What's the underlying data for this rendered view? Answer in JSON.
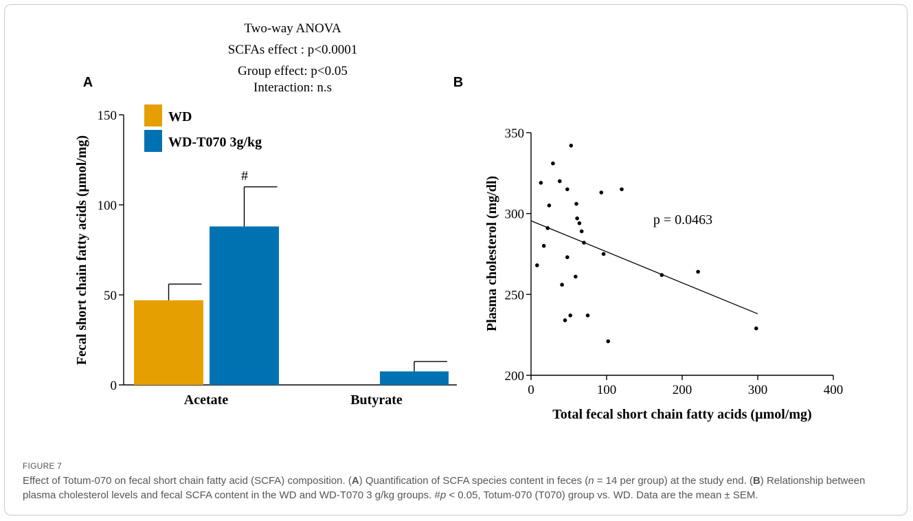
{
  "figure_label": "FIGURE 7",
  "caption": {
    "s1": "Effect of Totum-070 on fecal short chain fatty acid (SCFA) composition. (",
    "A": "A",
    "s2": ") Quantification of SCFA species content in feces (",
    "n": "n",
    "s3": " = 14 per group) at the study end. (",
    "B": "B",
    "s4": ") Relationship between plasma cholesterol levels and fecal SCFA content in the WD and WD-T070 3 g/kg groups. #",
    "p": "p",
    "s5": " < 0.05, Totum-070 (T070) group vs. WD. Data are the mean ± SEM."
  },
  "panel_a": {
    "letter": "A",
    "anova": [
      "Two-way ANOVA",
      "SCFAs effect : p<0.0001",
      "Group effect: p<0.05",
      "Interaction: n.s"
    ],
    "colors": {
      "WD": "#E69F00",
      "WD-T070 3g/kg": "#0072B2"
    }
  },
  "panel_b": {
    "letter": "B",
    "annotation": "p = 0.0463"
  },
  "chart_data": [
    {
      "type": "bar",
      "ylabel": "Fecal short chain fatty acids (µmol/mg)",
      "xlabel": "",
      "categories": [
        "Acetate",
        "Butyrate"
      ],
      "ylim": [
        0,
        150
      ],
      "yticks": [
        0,
        50,
        100,
        150
      ],
      "series": [
        {
          "name": "WD",
          "values": [
            47,
            0
          ],
          "sem": [
            9,
            0
          ]
        },
        {
          "name": "WD-T070 3g/kg",
          "values": [
            88,
            7.5
          ],
          "sem": [
            22,
            5.5
          ]
        }
      ],
      "significance": [
        {
          "series": "WD-T070 3g/kg",
          "category": "Acetate",
          "mark": "#"
        }
      ],
      "legend": "top-left"
    },
    {
      "type": "scatter",
      "xlabel": "Total fecal short chain fatty acids (µmol/mg)",
      "ylabel": "Plasma cholesterol (mg/dl)",
      "xlim": [
        0,
        400
      ],
      "ylim": [
        200,
        350
      ],
      "xticks": [
        0,
        100,
        200,
        300,
        400
      ],
      "yticks": [
        200,
        250,
        300,
        350
      ],
      "points": [
        [
          8,
          268
        ],
        [
          13,
          319
        ],
        [
          17,
          280
        ],
        [
          22,
          291
        ],
        [
          24,
          305
        ],
        [
          29,
          331
        ],
        [
          38,
          320
        ],
        [
          41,
          256
        ],
        [
          45,
          234
        ],
        [
          48,
          315
        ],
        [
          48,
          273
        ],
        [
          52,
          237
        ],
        [
          53,
          342
        ],
        [
          59,
          261
        ],
        [
          60,
          306
        ],
        [
          61,
          297
        ],
        [
          64,
          294
        ],
        [
          67,
          289
        ],
        [
          70,
          282
        ],
        [
          75,
          237
        ],
        [
          93,
          313
        ],
        [
          96,
          275
        ],
        [
          102,
          221
        ],
        [
          120,
          315
        ],
        [
          173,
          262
        ],
        [
          221,
          264
        ],
        [
          298,
          229
        ]
      ],
      "regression": {
        "x": [
          0,
          300
        ],
        "y": [
          295.5,
          238
        ]
      }
    }
  ]
}
